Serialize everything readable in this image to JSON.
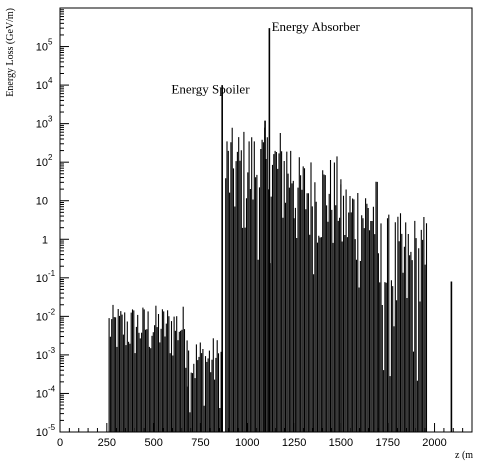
{
  "chart_data": {
    "type": "bar",
    "title": "",
    "xlabel": "z (m",
    "ylabel": "Energy Loss (GeV/m)",
    "xlim": [
      0,
      2200
    ],
    "ylim": [
      1e-05,
      1000000.0
    ],
    "log_y": true,
    "grid": false,
    "legend": "none",
    "x_ticks": [
      {
        "value": 0,
        "label": "0"
      },
      {
        "value": 250,
        "label": "250"
      },
      {
        "value": 500,
        "label": "500"
      },
      {
        "value": 750,
        "label": "750"
      },
      {
        "value": 1000,
        "label": "1000"
      },
      {
        "value": 1250,
        "label": "1250"
      },
      {
        "value": 1500,
        "label": "1500"
      },
      {
        "value": 1750,
        "label": "1750"
      },
      {
        "value": 2000,
        "label": "2000"
      }
    ],
    "y_ticks": [
      {
        "value": 100000,
        "base": "10",
        "exp": "5"
      },
      {
        "value": 10000,
        "base": "10",
        "exp": "4"
      },
      {
        "value": 1000,
        "base": "10",
        "exp": "3"
      },
      {
        "value": 100,
        "base": "10",
        "exp": "2"
      },
      {
        "value": 10,
        "base": "10",
        "exp": ""
      },
      {
        "value": 1,
        "base": "1",
        "exp": ""
      },
      {
        "value": 0.1,
        "base": "10",
        "exp": "-1"
      },
      {
        "value": 0.01,
        "base": "10",
        "exp": "-2"
      },
      {
        "value": 0.001,
        "base": "10",
        "exp": "-3"
      },
      {
        "value": 0.0001,
        "base": "10",
        "exp": "-4"
      },
      {
        "value": 1e-05,
        "base": "10",
        "exp": "-5"
      }
    ],
    "annotations": [
      {
        "text": "Energy Absorber",
        "x": 1130,
        "y": 250000
      },
      {
        "text": "Energy Spoiler",
        "x": 595,
        "y": 6000
      }
    ],
    "segments": [
      {
        "x_start": 262,
        "x_end": 680,
        "y_min": 0.0002,
        "y_max": 0.02
      },
      {
        "x_start": 680,
        "x_end": 870,
        "y_min": 2e-05,
        "y_max": 0.003
      },
      {
        "x_start": 885,
        "x_end": 1250,
        "y_min": 0.1,
        "y_max": 800
      },
      {
        "x_start": 1250,
        "x_end": 1500,
        "y_min": 0.05,
        "y_max": 150
      },
      {
        "x_start": 1500,
        "x_end": 1700,
        "y_min": 0.01,
        "y_max": 40
      },
      {
        "x_start": 1700,
        "x_end": 1960,
        "y_min": 2e-05,
        "y_max": 5
      }
    ],
    "spikes": [
      {
        "x": 866,
        "y": 10000
      },
      {
        "x": 1118,
        "y": 300000
      },
      {
        "x": 1095,
        "y": 1200
      },
      {
        "x": 2090,
        "y": 0.08
      }
    ]
  }
}
